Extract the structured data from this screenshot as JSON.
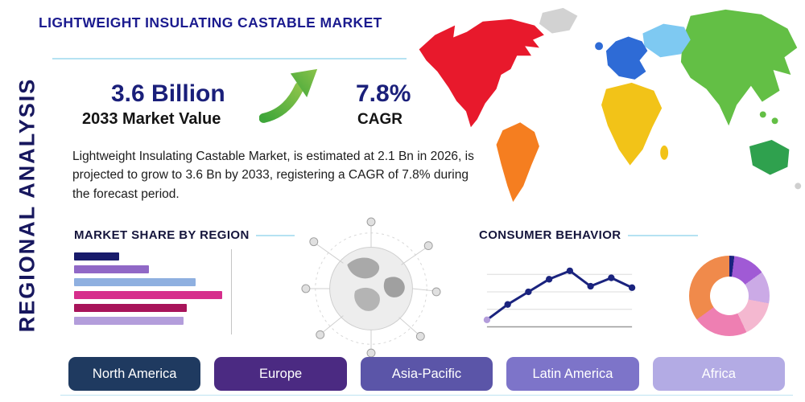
{
  "title": "LIGHTWEIGHT INSULATING CASTABLE MARKET",
  "side_label": "REGIONAL ANALYSIS",
  "stats": {
    "market_value": "3.6 Billion",
    "market_value_label": "2033 Market Value",
    "cagr_value": "7.8%",
    "cagr_label": "CAGR",
    "description": "Lightweight Insulating Castable Market, is estimated at 2.1 Bn in 2026, is projected to grow to 3.6 Bn by 2033, registering a CAGR of 7.8% during the forecast period."
  },
  "sections": {
    "market_share_title": "MARKET SHARE BY REGION",
    "consumer_behavior_title": "CONSUMER BEHAVIOR"
  },
  "chart_data": [
    {
      "type": "bar",
      "title": "MARKET SHARE BY REGION",
      "orientation": "horizontal",
      "axis_labels_visible": false,
      "values": [
        29,
        48,
        78,
        95,
        72,
        70
      ],
      "max": 100,
      "colors": [
        "#181b6b",
        "#9068c6",
        "#8fb0e0",
        "#d62e8c",
        "#a8145a",
        "#b39ddb"
      ]
    },
    {
      "type": "line",
      "title": "CONSUMER BEHAVIOR",
      "x": [
        1,
        2,
        3,
        4,
        5,
        6,
        7,
        8
      ],
      "values": [
        10,
        32,
        50,
        68,
        80,
        58,
        70,
        56
      ],
      "ylim": [
        0,
        100
      ],
      "grid": true,
      "line_color": "#1a237e",
      "first_point_color": "#b39ddb"
    },
    {
      "type": "pie",
      "style": "donut",
      "values": [
        2,
        13,
        13,
        15,
        22,
        35
      ],
      "colors": [
        "#1a237e",
        "#a05ad5",
        "#cbaae6",
        "#f4b8d0",
        "#ee7fb2",
        "#f08a4b"
      ]
    }
  ],
  "regions": [
    {
      "label": "North America",
      "color": "#1f3a60"
    },
    {
      "label": "Europe",
      "color": "#4b2a82"
    },
    {
      "label": "Asia-Pacific",
      "color": "#5b55a8"
    },
    {
      "label": "Latin America",
      "color": "#7d74c9"
    },
    {
      "label": "Africa",
      "color": "#b3abe4"
    }
  ],
  "map": {
    "regions": [
      {
        "id": "north-america",
        "color": "#e8192c"
      },
      {
        "id": "greenland",
        "color": "#d2d2d2"
      },
      {
        "id": "south-america",
        "color": "#f57e20"
      },
      {
        "id": "europe",
        "color": "#2e6bd6"
      },
      {
        "id": "north-asia",
        "color": "#7ec9f2"
      },
      {
        "id": "asia",
        "color": "#63bf45"
      },
      {
        "id": "africa",
        "color": "#f2c318"
      },
      {
        "id": "australia",
        "color": "#2fa14e"
      }
    ]
  },
  "accent_color": "#b5e2f2"
}
